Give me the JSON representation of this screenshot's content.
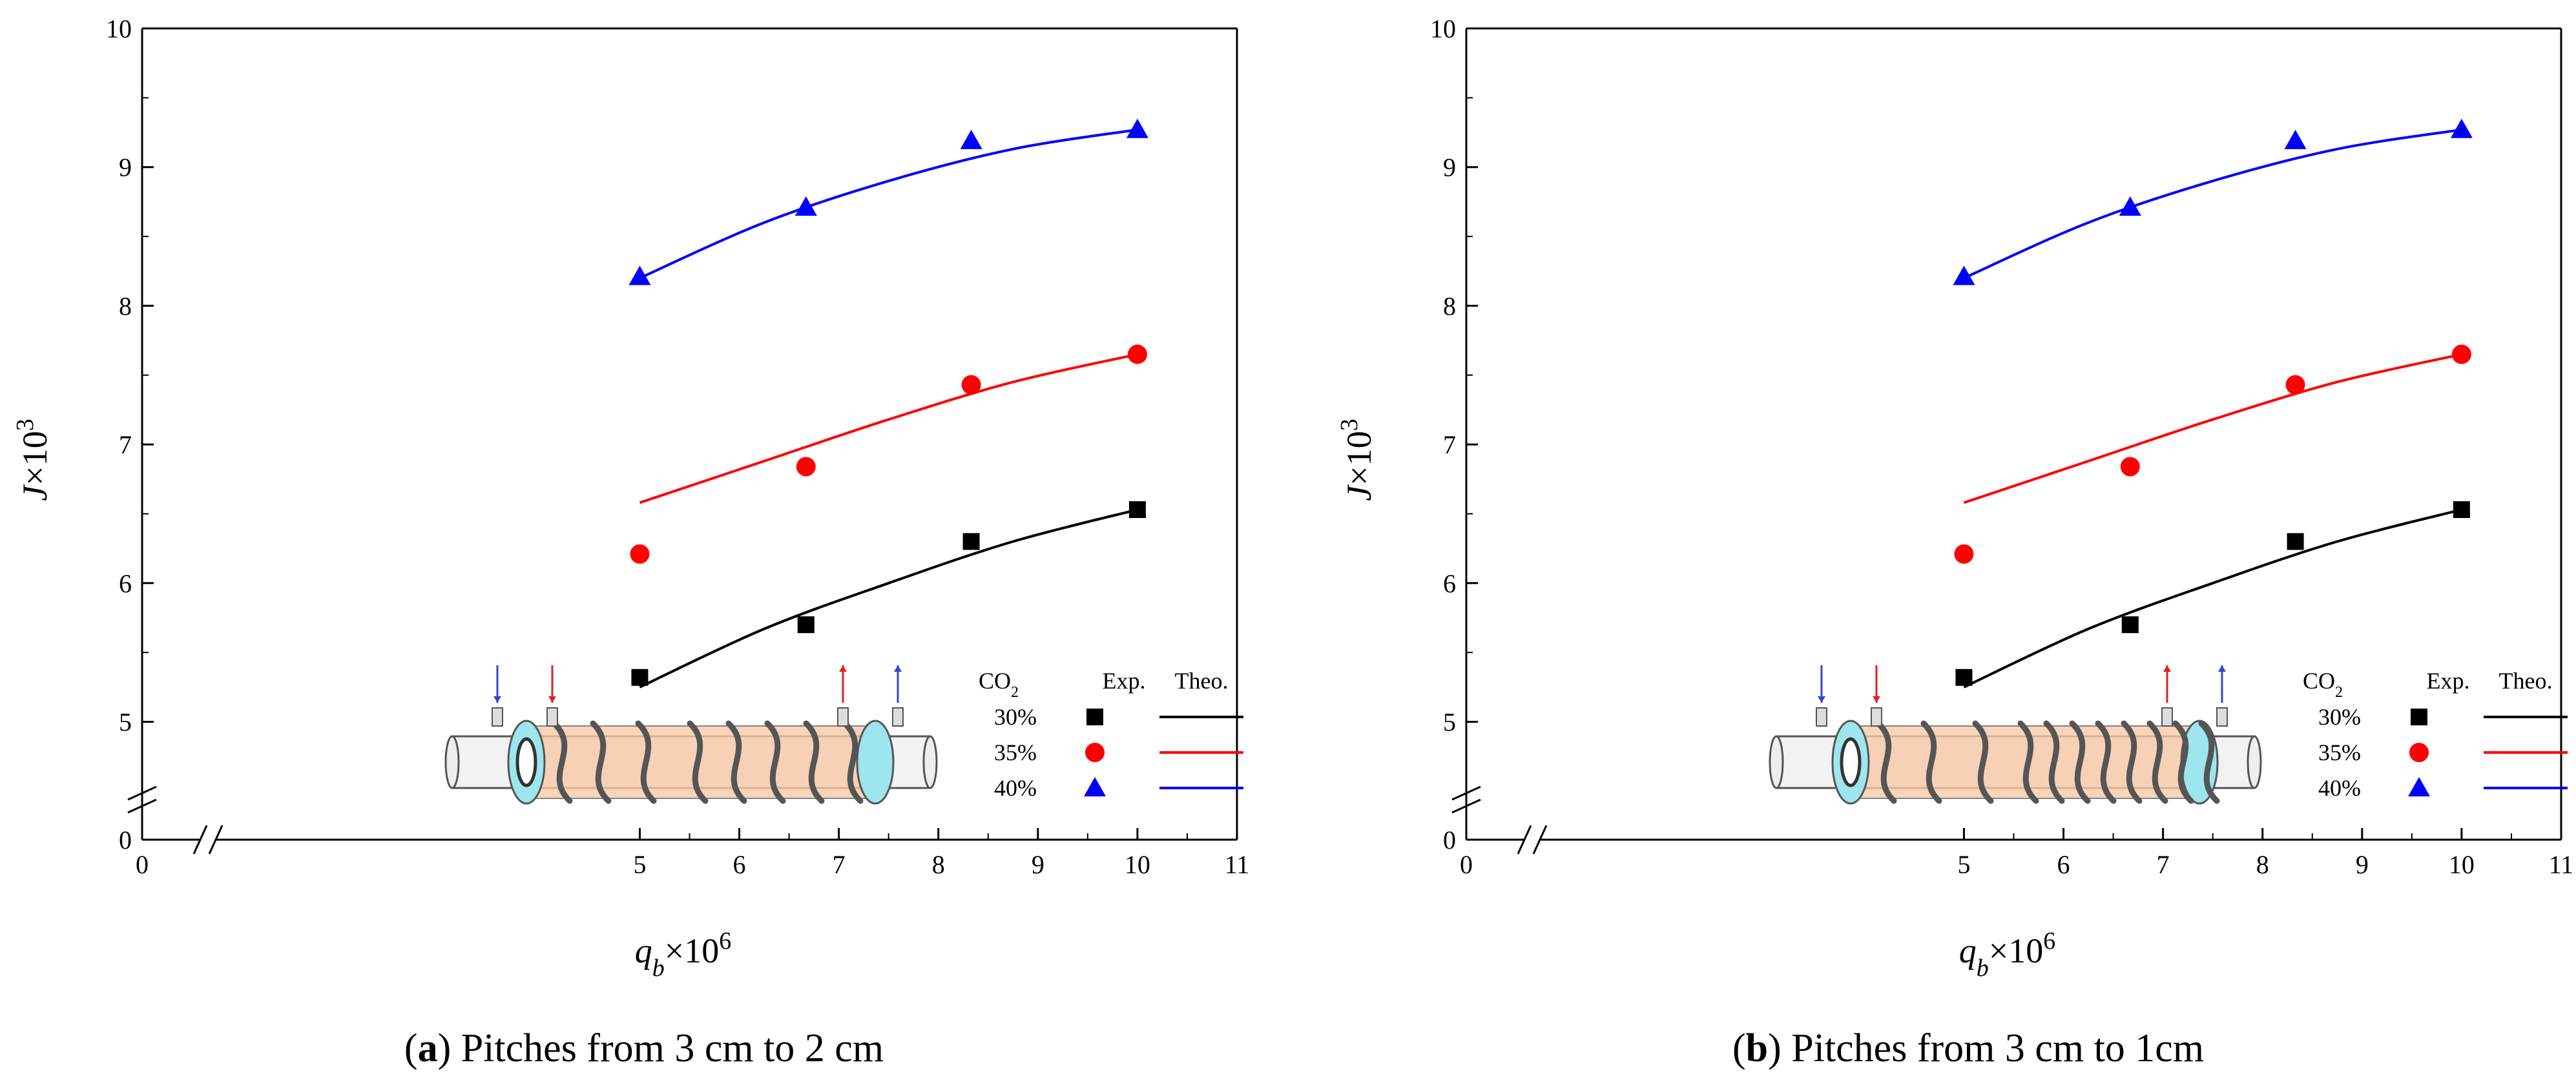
{
  "chart_data": [
    {
      "type": "scatter",
      "panel": "a",
      "caption_label": "a",
      "caption_text": ") Pitches from 3 cm to 2 cm",
      "xlabel_base": "q",
      "xlabel_sub": "b",
      "xlabel_rest": "×10",
      "xlabel_sup": "6",
      "ylabel_base": "J",
      "ylabel_rest": "×10",
      "ylabel_sup": "3",
      "xlim": [
        0,
        11
      ],
      "ylim": [
        4.15,
        10
      ],
      "x_ticks": [
        "0",
        "5",
        "6",
        "7",
        "8",
        "9",
        "10",
        "11"
      ],
      "y_ticks": [
        "0",
        "5",
        "6",
        "7",
        "8",
        "9",
        "10"
      ],
      "axis_break": true,
      "legend": {
        "header_gas": "CO",
        "header_gas_sub": "2",
        "header_exp": "Exp.",
        "header_theo": "Theo.",
        "position": "bottom-right"
      },
      "series": [
        {
          "name": "30%",
          "color": "#000000",
          "marker": "square",
          "exp_x": [
            5,
            6.67,
            8.33,
            10
          ],
          "exp_y": [
            5.32,
            5.7,
            6.3,
            6.53
          ],
          "theo_x": [
            5,
            6.25,
            7.5,
            8.75,
            10
          ],
          "theo_y": [
            5.25,
            5.67,
            6.0,
            6.3,
            6.53
          ]
        },
        {
          "name": "35%",
          "color": "#ff0000",
          "marker": "circle",
          "exp_x": [
            5,
            6.67,
            8.33,
            10
          ],
          "exp_y": [
            6.21,
            6.84,
            7.43,
            7.65
          ],
          "theo_x": [
            5,
            6.25,
            7.5,
            8.75,
            10
          ],
          "theo_y": [
            6.58,
            6.88,
            7.18,
            7.45,
            7.65
          ]
        },
        {
          "name": "40%",
          "color": "#0000ff",
          "marker": "triangle",
          "exp_x": [
            5,
            6.67,
            8.33,
            10
          ],
          "exp_y": [
            8.21,
            8.71,
            9.19,
            9.27
          ],
          "theo_x": [
            5,
            6.25,
            7.5,
            8.75,
            10
          ],
          "theo_y": [
            8.2,
            8.6,
            8.9,
            9.13,
            9.27
          ]
        }
      ]
    },
    {
      "type": "scatter",
      "panel": "b",
      "caption_label": "b",
      "caption_text": ") Pitches from 3 cm to 1cm",
      "xlabel_base": "q",
      "xlabel_sub": "b",
      "xlabel_rest": "×10",
      "xlabel_sup": "6",
      "ylabel_base": "J",
      "ylabel_rest": "×10",
      "ylabel_sup": "3",
      "xlim": [
        0,
        11
      ],
      "ylim": [
        4.15,
        10
      ],
      "x_ticks": [
        "0",
        "5",
        "6",
        "7",
        "8",
        "9",
        "10",
        "11"
      ],
      "y_ticks": [
        "0",
        "5",
        "6",
        "7",
        "8",
        "9",
        "10"
      ],
      "axis_break": true,
      "legend": {
        "header_gas": "CO",
        "header_gas_sub": "2",
        "header_exp": "Exp.",
        "header_theo": "Theo.",
        "position": "bottom-right"
      },
      "series": [
        {
          "name": "30%",
          "color": "#000000",
          "marker": "square",
          "exp_x": [
            5,
            6.67,
            8.33,
            10
          ],
          "exp_y": [
            5.32,
            5.7,
            6.3,
            6.53
          ],
          "theo_x": [
            5,
            6.25,
            7.5,
            8.75,
            10
          ],
          "theo_y": [
            5.25,
            5.67,
            6.0,
            6.3,
            6.53
          ]
        },
        {
          "name": "35%",
          "color": "#ff0000",
          "marker": "circle",
          "exp_x": [
            5,
            6.67,
            8.33,
            10
          ],
          "exp_y": [
            6.21,
            6.84,
            7.43,
            7.65
          ],
          "theo_x": [
            5,
            6.25,
            7.5,
            8.75,
            10
          ],
          "theo_y": [
            6.58,
            6.88,
            7.18,
            7.45,
            7.65
          ]
        },
        {
          "name": "40%",
          "color": "#0000ff",
          "marker": "triangle",
          "exp_x": [
            5,
            6.67,
            8.33,
            10
          ],
          "exp_y": [
            8.21,
            8.71,
            9.19,
            9.27
          ],
          "theo_x": [
            5,
            6.25,
            7.5,
            8.75,
            10
          ],
          "theo_y": [
            8.2,
            8.6,
            8.9,
            9.13,
            9.27
          ]
        }
      ]
    }
  ]
}
